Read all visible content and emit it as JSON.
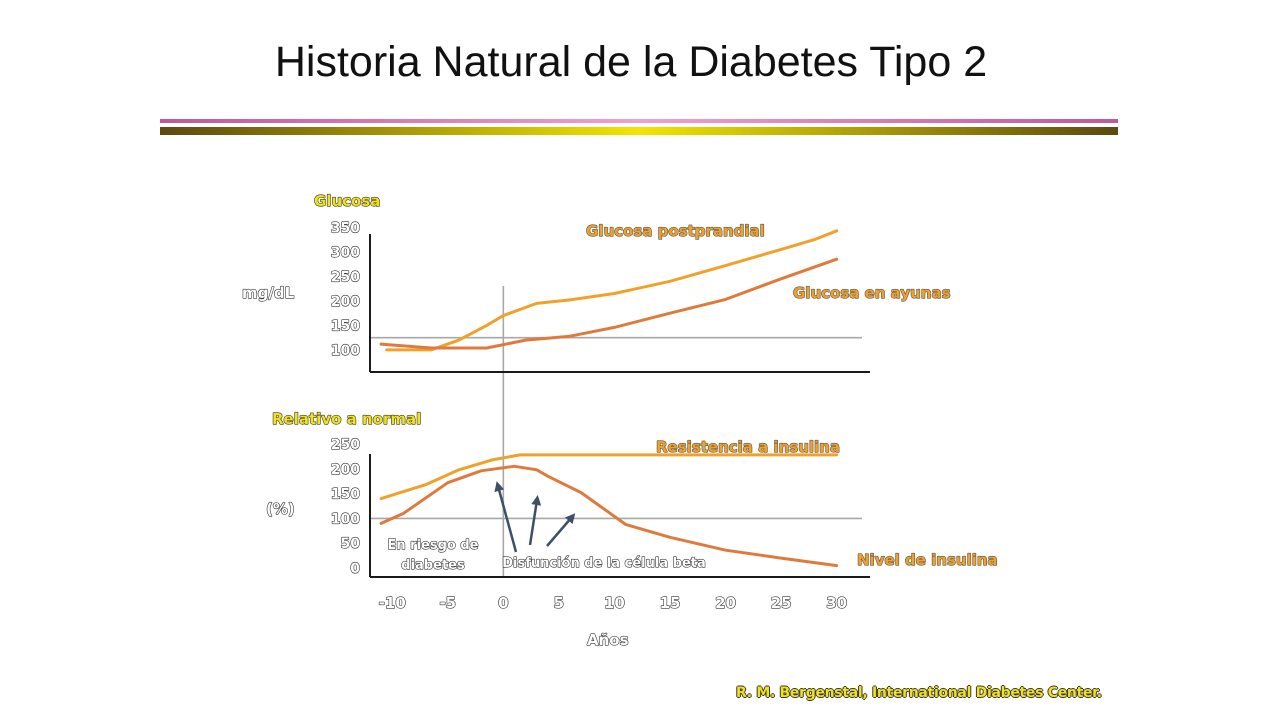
{
  "slide": {
    "title": "Historia Natural de la Diabetes Tipo 2",
    "source": "R. M. Bergenstal, International Diabetes Center."
  },
  "colors": {
    "rule_top": "#c0589a",
    "rule_top_mid": "#f0a0d0",
    "rule_bottom": "#5a4a10",
    "rule_bottom_mid": "#f5e400",
    "orange_light": "#f0a12a",
    "orange_dark": "#e07a3c",
    "label_yellow": "#f2e21a",
    "label_orange": "#f0a12a",
    "axis": "#1a1a1a",
    "reference": "#a8a8a8",
    "arrow": "#3d5068"
  },
  "chart_data": [
    {
      "type": "line",
      "panel": "top",
      "title": "Glucosa",
      "ylabel": "mg/dL",
      "xlabel": "",
      "yticks": [
        100,
        150,
        200,
        250,
        300,
        350
      ],
      "xlim": [
        -12,
        33
      ],
      "ylim": [
        55,
        365
      ],
      "reference_x": 0,
      "reference_y": 125,
      "series": [
        {
          "name": "Glucosa postprandial",
          "color": "#f0a12a",
          "x": [
            -10.5,
            -6.5,
            -4,
            -1.5,
            0,
            3,
            6,
            10,
            15,
            20,
            25,
            28,
            30
          ],
          "y": [
            100,
            100,
            120,
            150,
            170,
            195,
            202,
            215,
            240,
            272,
            305,
            325,
            343
          ]
        },
        {
          "name": "Glucosa en ayunas",
          "color": "#e07a3c",
          "x": [
            -11,
            -6.5,
            -1.5,
            2,
            6,
            10,
            15,
            20,
            25,
            30
          ],
          "y": [
            112,
            104,
            104,
            120,
            128,
            146,
            175,
            203,
            245,
            285
          ]
        }
      ]
    },
    {
      "type": "line",
      "panel": "bottom",
      "title": "Relativo a normal",
      "ylabel": "(%)",
      "xlabel": "Años",
      "yticks": [
        0,
        50,
        100,
        150,
        200,
        250
      ],
      "xticks": [
        -10,
        -5,
        0,
        5,
        10,
        15,
        20,
        25,
        30
      ],
      "xlim": [
        -12,
        33
      ],
      "ylim": [
        -18,
        258
      ],
      "reference_y": 100,
      "series": [
        {
          "name": "Resistencia a insulina",
          "color": "#f0a12a",
          "x": [
            -11,
            -7,
            -4,
            -1,
            1.5,
            5,
            10,
            15,
            20,
            25,
            30
          ],
          "y": [
            140,
            168,
            198,
            218,
            228,
            228,
            228,
            228,
            228,
            228,
            228
          ]
        },
        {
          "name": "Nivel de insulina",
          "color": "#e07a3c",
          "x": [
            -11,
            -9,
            -5,
            -2,
            1,
            3,
            4,
            7,
            11,
            15,
            20,
            25,
            30
          ],
          "y": [
            90,
            110,
            172,
            196,
            205,
            198,
            185,
            152,
            88,
            62,
            36,
            20,
            5
          ]
        }
      ],
      "annotations": {
        "risk": "En riesgo de diabetes",
        "risk_line1": "En riesgo de",
        "risk_line2": "diabetes",
        "beta": "Disfunción de la célula beta"
      }
    }
  ]
}
